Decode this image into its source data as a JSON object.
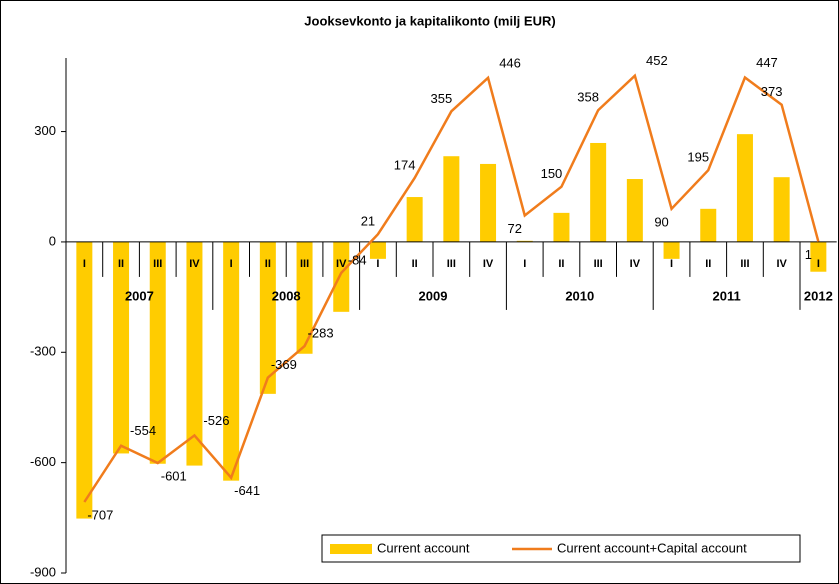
{
  "chart_data": {
    "type": "bar-line",
    "title": "Jooksevkonto ja kapitalikonto (milj EUR)",
    "categories": [
      "I",
      "II",
      "III",
      "IV",
      "I",
      "II",
      "III",
      "IV",
      "I",
      "II",
      "III",
      "IV",
      "I",
      "II",
      "III",
      "IV",
      "I",
      "II",
      "III",
      "IV",
      "I"
    ],
    "years": [
      "2007",
      "2008",
      "2009",
      "2010",
      "2011",
      "2012"
    ],
    "series": [
      {
        "name": "Current account",
        "kind": "bar",
        "color": "#ffcc00",
        "values": [
          -752,
          -575,
          -603,
          -608,
          -649,
          -413,
          -304,
          -190,
          -46,
          122,
          233,
          212,
          3,
          79,
          269,
          171,
          -46,
          90,
          293,
          176,
          -81
        ]
      },
      {
        "name": "Current account+Capital account",
        "kind": "line",
        "color": "#f07c1c",
        "values": [
          -707,
          -554,
          -601,
          -526,
          -641,
          -369,
          -283,
          -84,
          21,
          174,
          355,
          446,
          72,
          150,
          358,
          452,
          90,
          195,
          447,
          373,
          1
        ]
      }
    ],
    "ylim": [
      -900,
      500
    ],
    "yticks": [
      -900,
      -600,
      -300,
      0,
      300
    ]
  }
}
